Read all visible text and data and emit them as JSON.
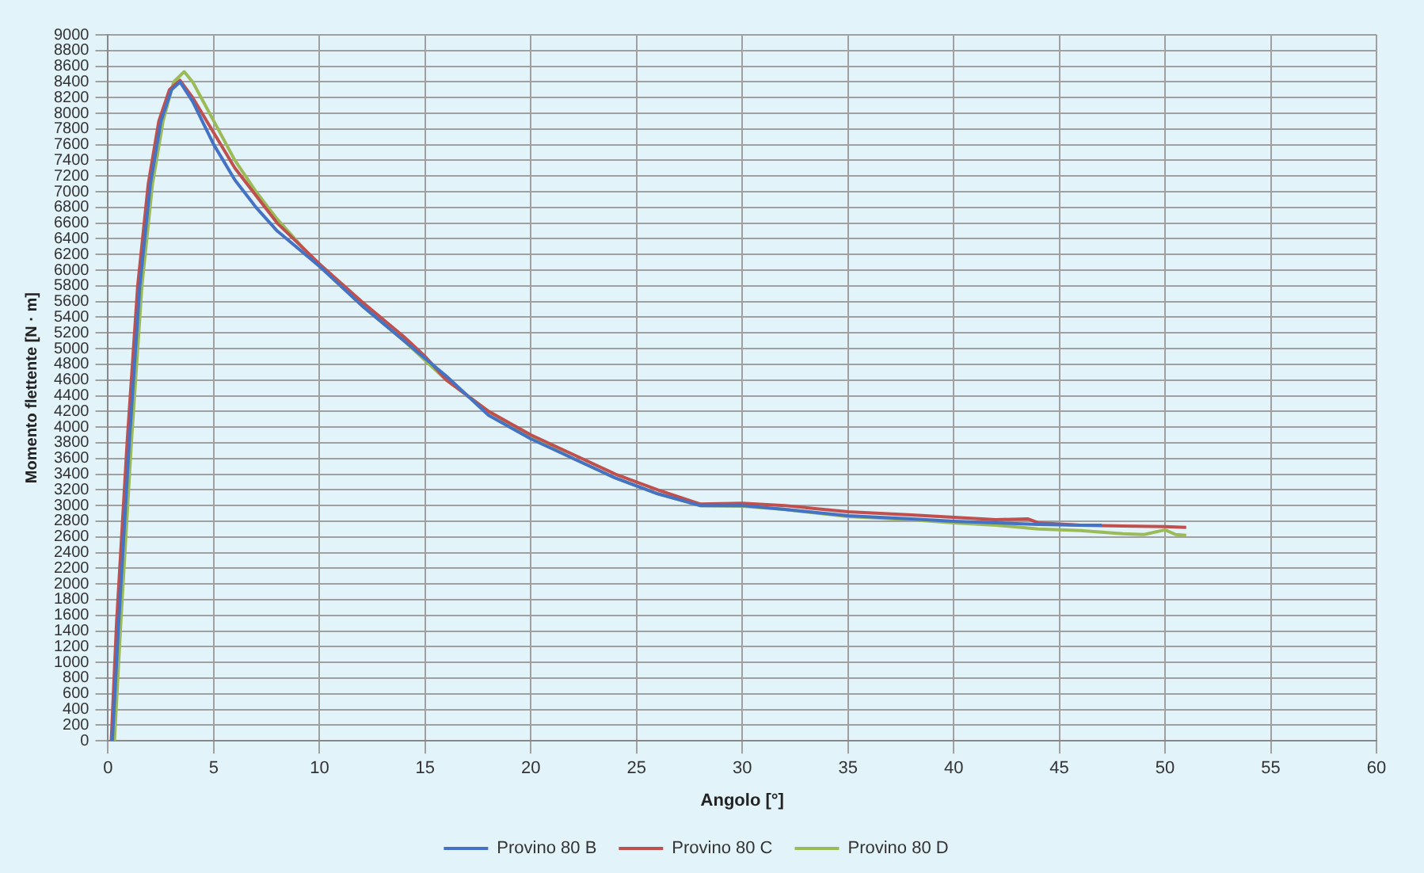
{
  "chart_data": {
    "type": "line",
    "xlabel": "Angolo [°]",
    "ylabel": "Momento flettente [N · m]",
    "xlim": [
      0,
      60
    ],
    "xticks": [
      0,
      5,
      10,
      15,
      20,
      25,
      30,
      35,
      40,
      45,
      50,
      55,
      60
    ],
    "ylim": [
      0,
      9000
    ],
    "yticks": [
      0,
      200,
      400,
      600,
      800,
      1000,
      1200,
      1400,
      1600,
      1800,
      2000,
      2200,
      2400,
      2600,
      2800,
      3000,
      3200,
      3400,
      3600,
      3800,
      4000,
      4200,
      4400,
      4600,
      4800,
      5000,
      5200,
      5400,
      5600,
      5800,
      6000,
      6200,
      6400,
      6600,
      6800,
      7000,
      7200,
      7400,
      7600,
      7800,
      8000,
      8200,
      8400,
      8600,
      8800,
      9000
    ],
    "grid": true,
    "legend": "bottom",
    "marker": "none",
    "line_style": "solid",
    "series": [
      {
        "name": "Provino 80 B",
        "color": "#4472c4",
        "x": [
          0.2,
          0.5,
          1,
          1.5,
          2,
          2.5,
          3,
          3.4,
          4,
          5,
          6,
          7,
          8,
          10,
          12,
          14,
          16,
          18,
          20,
          22,
          24,
          26,
          28,
          30,
          32,
          35,
          38,
          40,
          42,
          44,
          46,
          47
        ],
        "values": [
          0,
          1500,
          3800,
          5800,
          7100,
          7900,
          8300,
          8400,
          8150,
          7600,
          7150,
          6800,
          6500,
          6050,
          5550,
          5100,
          4650,
          4150,
          3850,
          3600,
          3350,
          3150,
          3000,
          3000,
          2950,
          2870,
          2830,
          2800,
          2780,
          2760,
          2750,
          2750
        ]
      },
      {
        "name": "Provino 80 C",
        "color": "#c0504d",
        "x": [
          0.15,
          0.4,
          0.9,
          1.4,
          1.9,
          2.4,
          2.9,
          3.4,
          4,
          5,
          6,
          7,
          8,
          10,
          12,
          14,
          15,
          16,
          18,
          20,
          22,
          24,
          26,
          28,
          30,
          32,
          35,
          38,
          40,
          42,
          43.5,
          44,
          46,
          48,
          50,
          51
        ],
        "values": [
          0,
          1500,
          3800,
          5800,
          7100,
          7900,
          8300,
          8420,
          8200,
          7750,
          7300,
          6950,
          6600,
          6080,
          5600,
          5150,
          4900,
          4600,
          4200,
          3900,
          3650,
          3400,
          3200,
          3020,
          3030,
          3000,
          2920,
          2880,
          2850,
          2820,
          2830,
          2780,
          2750,
          2740,
          2730,
          2720
        ]
      },
      {
        "name": "Provino 80 D",
        "color": "#9bbb59",
        "x": [
          0.3,
          0.6,
          1.1,
          1.6,
          2.1,
          2.6,
          3.1,
          3.6,
          4,
          5,
          6,
          7,
          8,
          10,
          12,
          14,
          16,
          18,
          20,
          22,
          24,
          26,
          28,
          30,
          32,
          35,
          38,
          40,
          42,
          44,
          46,
          48,
          49,
          50,
          50.5,
          51
        ],
        "values": [
          0,
          1500,
          3800,
          5800,
          7100,
          7900,
          8400,
          8530,
          8400,
          7900,
          7400,
          7000,
          6650,
          6050,
          5550,
          5100,
          4600,
          4200,
          3880,
          3600,
          3350,
          3150,
          3000,
          2990,
          2950,
          2860,
          2820,
          2780,
          2750,
          2700,
          2680,
          2640,
          2630,
          2690,
          2630,
          2620
        ]
      }
    ]
  }
}
